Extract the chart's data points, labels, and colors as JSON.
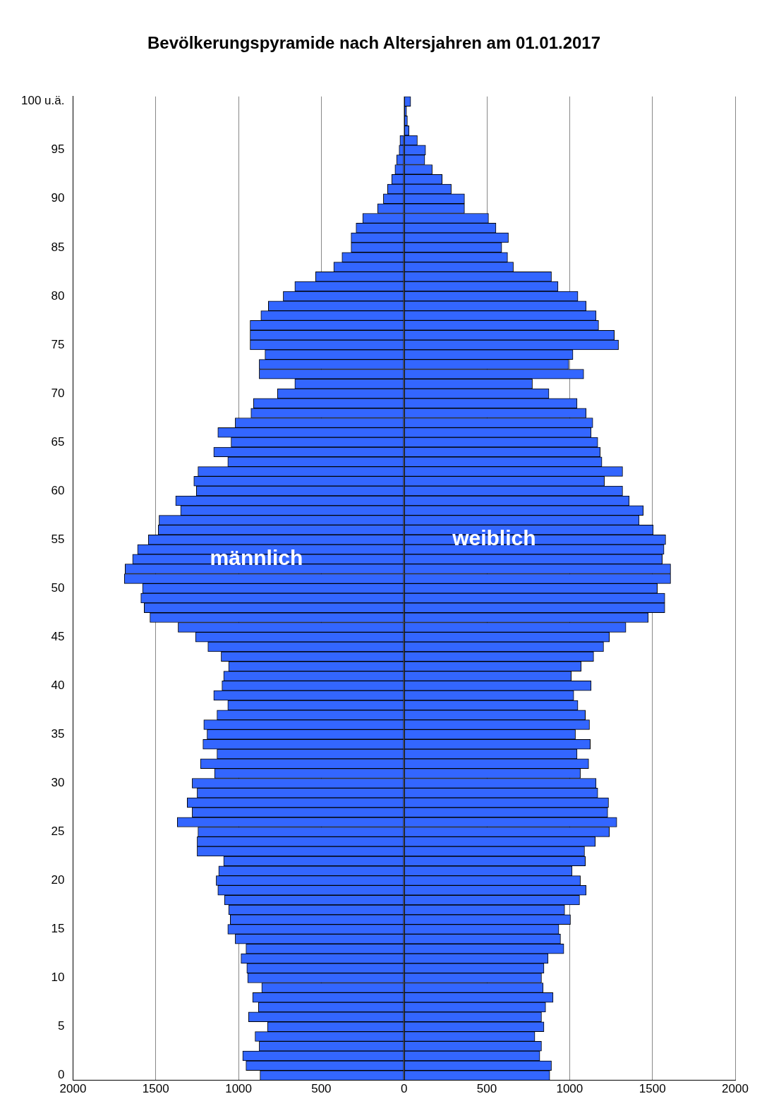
{
  "chart_data": {
    "type": "bar",
    "orientation": "horizontal",
    "stacked": true,
    "title": "Bevölkerungspyramide nach Altersjahren am 01.01.2017",
    "categories": [
      "100 u.ä.",
      null,
      null,
      null,
      null,
      "95",
      null,
      null,
      null,
      null,
      "90",
      null,
      null,
      null,
      null,
      "85",
      null,
      null,
      null,
      null,
      "80",
      null,
      null,
      null,
      null,
      "75",
      null,
      null,
      null,
      null,
      "70",
      null,
      null,
      null,
      null,
      "65",
      null,
      null,
      null,
      null,
      "60",
      null,
      null,
      null,
      null,
      "55",
      null,
      null,
      null,
      null,
      "50",
      null,
      null,
      null,
      null,
      "45",
      null,
      null,
      null,
      null,
      "40",
      null,
      null,
      null,
      null,
      "35",
      null,
      null,
      null,
      null,
      "30",
      null,
      null,
      null,
      null,
      "25",
      null,
      null,
      null,
      null,
      "20",
      null,
      null,
      null,
      null,
      "15",
      null,
      null,
      null,
      null,
      "10",
      null,
      null,
      null,
      null,
      "5",
      null,
      null,
      null,
      null,
      "0"
    ],
    "series": [
      {
        "name": "männlich",
        "color": "#3366ff",
        "values": [
          null,
          null,
          null,
          null,
          -25,
          -30,
          -45,
          -55,
          -75,
          -100,
          -125,
          -160,
          -250,
          -290,
          -320,
          -320,
          -375,
          -425,
          -535,
          -660,
          -730,
          -820,
          -865,
          -930,
          -930,
          -930,
          -840,
          -875,
          -875,
          -660,
          -765,
          -910,
          -925,
          -1020,
          -1125,
          -1045,
          -1150,
          -1065,
          -1245,
          -1270,
          -1255,
          -1380,
          -1350,
          -1480,
          -1485,
          -1545,
          -1610,
          -1640,
          -1685,
          -1690,
          -1580,
          -1590,
          -1570,
          -1535,
          -1365,
          -1260,
          -1185,
          -1105,
          -1060,
          -1090,
          -1100,
          -1150,
          -1065,
          -1130,
          -1210,
          -1190,
          -1215,
          -1130,
          -1230,
          -1145,
          -1280,
          -1250,
          -1310,
          -1280,
          -1370,
          -1245,
          -1250,
          -1250,
          -1090,
          -1120,
          -1135,
          -1125,
          -1085,
          -1060,
          -1050,
          -1065,
          -1020,
          -955,
          -985,
          -950,
          -945,
          -860,
          -915,
          -880,
          -940,
          -825,
          -900,
          -875,
          -975,
          -955,
          -870
        ]
      },
      {
        "name": "weiblich",
        "color": "#3366ff",
        "values": [
          40,
          15,
          20,
          30,
          80,
          130,
          125,
          170,
          230,
          285,
          365,
          365,
          510,
          555,
          630,
          590,
          625,
          660,
          890,
          930,
          1050,
          1100,
          1160,
          1175,
          1270,
          1295,
          1020,
          995,
          1085,
          775,
          875,
          1045,
          1100,
          1140,
          1130,
          1170,
          1185,
          1195,
          1320,
          1210,
          1320,
          1360,
          1445,
          1420,
          1505,
          1580,
          1570,
          1560,
          1610,
          1610,
          1530,
          1575,
          1575,
          1475,
          1340,
          1240,
          1205,
          1145,
          1070,
          1010,
          1130,
          1025,
          1050,
          1095,
          1120,
          1035,
          1125,
          1045,
          1115,
          1065,
          1160,
          1170,
          1235,
          1230,
          1285,
          1240,
          1155,
          1090,
          1095,
          1015,
          1065,
          1100,
          1060,
          970,
          1005,
          935,
          945,
          965,
          870,
          845,
          830,
          840,
          900,
          855,
          830,
          845,
          790,
          830,
          820,
          890,
          880
        ]
      }
    ],
    "xlim": [
      -2000,
      2000
    ],
    "xticks": [
      {
        "value": -2000,
        "label": "2000"
      },
      {
        "value": -1500,
        "label": "1500"
      },
      {
        "value": -1000,
        "label": "1000"
      },
      {
        "value": -500,
        "label": "500"
      },
      0,
      500,
      1000,
      1500,
      2000
    ],
    "grid": "x",
    "legend": false
  }
}
